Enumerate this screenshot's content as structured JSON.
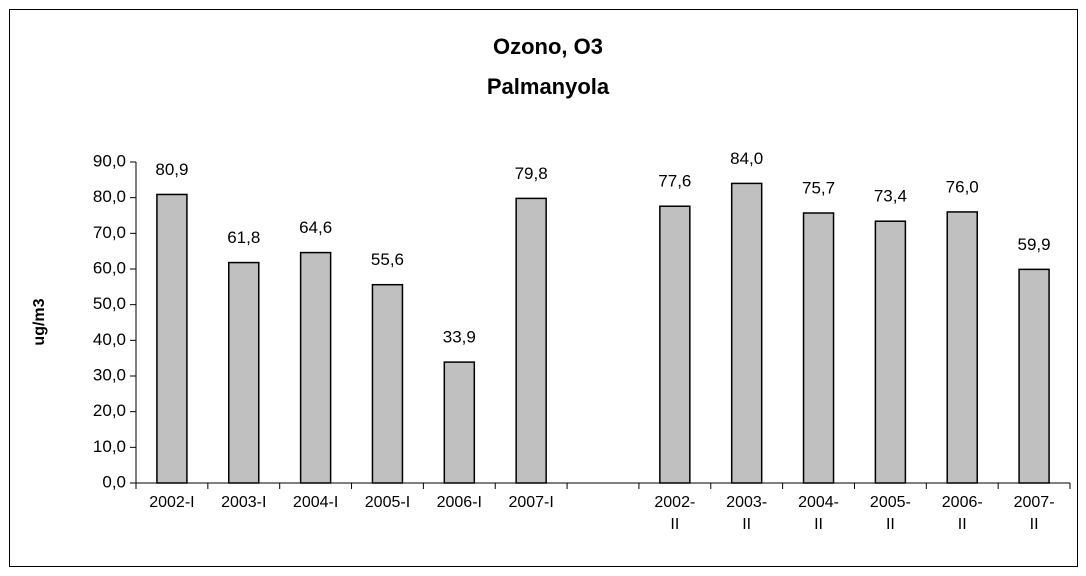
{
  "chart_data": {
    "type": "bar",
    "title": "Ozono, O3",
    "subtitle": "Palmanyola",
    "y_label": "ug/m3",
    "categories": [
      "2002-I",
      "2003-I",
      "2004-I",
      "2005-I",
      "2006-I",
      "2007-I",
      null,
      "2002-II",
      "2003-II",
      "2004-II",
      "2005-II",
      "2006-II",
      "2007-II"
    ],
    "values": [
      80.9,
      61.8,
      64.6,
      55.6,
      33.9,
      79.8,
      null,
      77.6,
      84.0,
      75.7,
      73.4,
      76.0,
      59.9
    ],
    "value_labels": [
      "80,9",
      "61,8",
      "64,6",
      "55,6",
      "33,9",
      "79,8",
      null,
      "77,6",
      "84,0",
      "75,7",
      "73,4",
      "76,0",
      "59,9"
    ],
    "color": "#c0c0c0",
    "ylim": [
      0,
      90
    ],
    "yticks": [
      {
        "value": 0,
        "label": "0,0"
      },
      {
        "value": 10,
        "label": "10,0"
      },
      {
        "value": 20,
        "label": "20,0"
      },
      {
        "value": 30,
        "label": "30,0"
      },
      {
        "value": 40,
        "label": "40,0"
      },
      {
        "value": 50,
        "label": "50,0"
      },
      {
        "value": 60,
        "label": "60,0"
      },
      {
        "value": 70,
        "label": "70,0"
      },
      {
        "value": 80,
        "label": "80,0"
      },
      {
        "value": 90,
        "label": "90,0"
      }
    ],
    "grid": false
  }
}
